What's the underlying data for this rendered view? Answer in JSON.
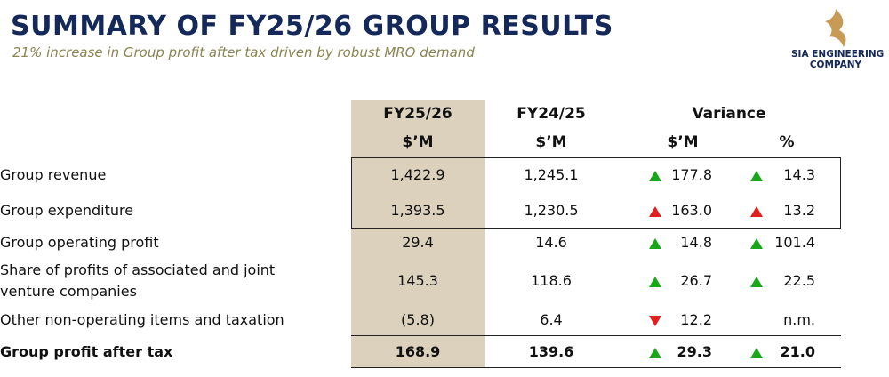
{
  "header": {
    "title": "SUMMARY OF FY25/26 GROUP RESULTS",
    "subtitle": "21% increase in Group profit after tax driven by robust MRO demand",
    "logo": [
      "SIA ENGINEERING",
      "COMPANY"
    ]
  },
  "table": {
    "columns": [
      "FY25/26",
      "FY24/25",
      "Variance"
    ],
    "units": [
      "$’M",
      "$’M",
      "$’M",
      "%"
    ],
    "rows": [
      {
        "label": "Group revenue",
        "cells": [
          "1,422.9",
          "1,245.1",
          "177.8",
          "14.3"
        ],
        "arrows": [
          {
            "direction": "up",
            "color": "#19a619"
          },
          {
            "direction": "up",
            "color": "#19a619"
          }
        ]
      },
      {
        "label": "Group expenditure",
        "cells": [
          "1,393.5",
          "1,230.5",
          "163.0",
          "13.2"
        ],
        "arrows": [
          {
            "direction": "up",
            "color": "#e0201e"
          },
          {
            "direction": "up",
            "color": "#e0201e"
          }
        ]
      },
      {
        "label": "Group operating profit",
        "cells": [
          "29.4",
          "14.6",
          "14.8",
          "101.4"
        ],
        "arrows": [
          {
            "direction": "up",
            "color": "#19a619"
          },
          {
            "direction": "up",
            "color": "#19a619"
          }
        ]
      },
      {
        "label": "Share of profits of associated and joint venture companies",
        "cells": [
          "145.3",
          "118.6",
          "26.7",
          "22.5"
        ],
        "arrows": [
          {
            "direction": "up",
            "color": "#19a619"
          },
          {
            "direction": "up",
            "color": "#19a619"
          }
        ]
      },
      {
        "label": "Other non-operating items and taxation",
        "cells": [
          "(5.8)",
          "6.4",
          "12.2",
          "n.m."
        ],
        "arrows": [
          {
            "direction": "down",
            "color": "#e0201e"
          },
          null
        ]
      },
      {
        "label": "Group profit after tax",
        "cells": [
          "168.9",
          "139.6",
          "29.3",
          "21.0"
        ],
        "arrows": [
          {
            "direction": "up",
            "color": "#19a619"
          },
          {
            "direction": "up",
            "color": "#19a619"
          }
        ],
        "bold": true
      }
    ]
  }
}
